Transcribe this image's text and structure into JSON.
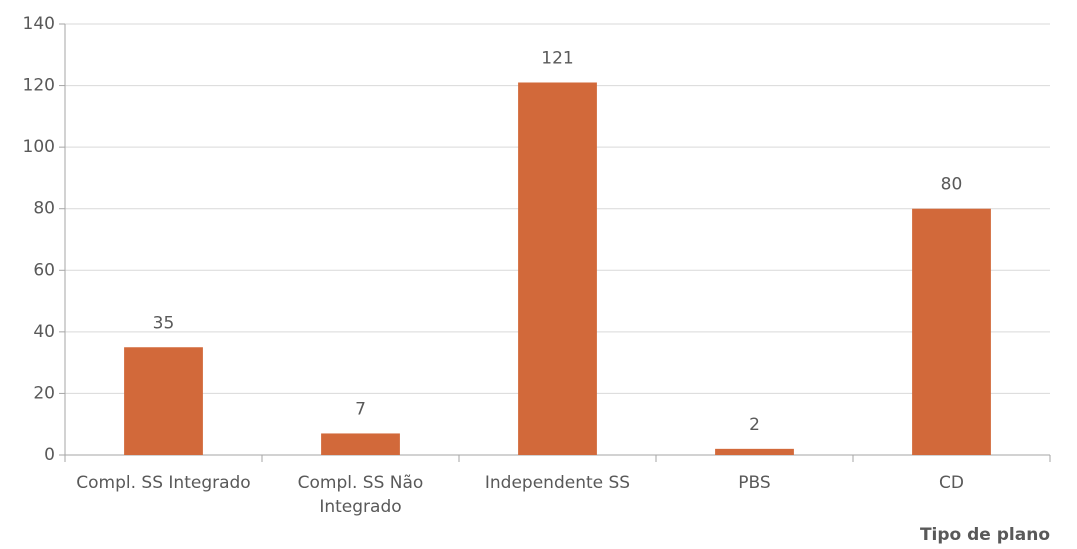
{
  "chart_data": {
    "type": "bar",
    "categories": [
      "Compl. SS Integrado",
      "Compl. SS Não Integrado",
      "Independente SS",
      "PBS",
      "CD"
    ],
    "values": [
      35,
      7,
      121,
      2,
      80
    ],
    "color": "#d2693a",
    "x_label": "Tipo de plano",
    "ylim": [
      0,
      140
    ],
    "yticks": [
      0,
      20,
      40,
      60,
      80,
      100,
      120,
      140
    ],
    "grid": true
  }
}
